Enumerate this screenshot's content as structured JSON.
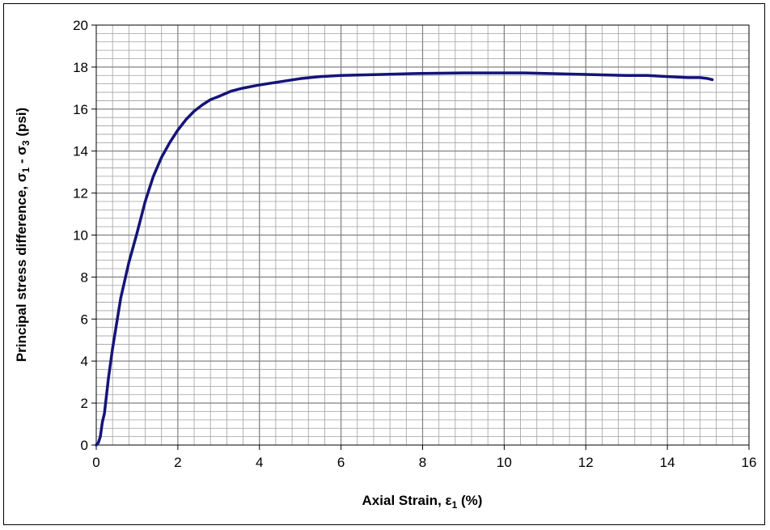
{
  "chart_data": {
    "type": "line",
    "xlabel": {
      "pre": "Axial Strain, ",
      "sym": "ε",
      "sub": "1",
      "post": " (%)"
    },
    "ylabel": {
      "pre": "Principal stress difference, ",
      "s1": "σ",
      "sub1": "1",
      "mid": " - ",
      "s3": "σ",
      "sub3": "3",
      "post": " (psi)"
    },
    "xlim": [
      0,
      16
    ],
    "ylim": [
      0,
      20
    ],
    "x_ticks": [
      "0",
      "2",
      "4",
      "6",
      "8",
      "10",
      "12",
      "14",
      "16"
    ],
    "y_ticks": [
      "0",
      "2",
      "4",
      "6",
      "8",
      "10",
      "12",
      "14",
      "16",
      "18",
      "20"
    ],
    "grid": {
      "major": true,
      "minor": true,
      "minor_x_step": 0.4,
      "minor_y_step": 0.4
    },
    "legend": "none",
    "colors": {
      "line": "#141478",
      "grid": "#a0a0a0",
      "axis": "#000000"
    },
    "series": [
      {
        "x": [
          0,
          0.05,
          0.1,
          0.15,
          0.2,
          0.3,
          0.4,
          0.5,
          0.6,
          0.8,
          1.0,
          1.2,
          1.4,
          1.6,
          1.8,
          2.0,
          2.2,
          2.4,
          2.6,
          2.8,
          3.0,
          3.3,
          3.6,
          4.0,
          4.5,
          5.0,
          5.5,
          6.0,
          7.0,
          8.0,
          9.0,
          10.0,
          10.5,
          11.0,
          12.0,
          13.0,
          13.5,
          14.0,
          14.5,
          14.8,
          15.0,
          15.1
        ],
        "y": [
          0,
          0.1,
          0.4,
          1.1,
          1.5,
          3.2,
          4.6,
          5.8,
          7.0,
          8.7,
          10.1,
          11.6,
          12.8,
          13.7,
          14.4,
          15.0,
          15.5,
          15.9,
          16.2,
          16.45,
          16.6,
          16.85,
          17.0,
          17.15,
          17.3,
          17.45,
          17.55,
          17.6,
          17.65,
          17.7,
          17.72,
          17.72,
          17.72,
          17.7,
          17.65,
          17.6,
          17.6,
          17.55,
          17.5,
          17.5,
          17.45,
          17.4
        ]
      }
    ]
  }
}
